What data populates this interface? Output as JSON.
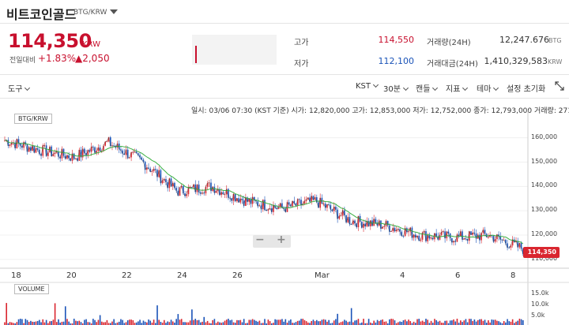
{
  "header": {
    "coin_name": "비트코인골드",
    "pair": "BTG/KRW"
  },
  "ticker": {
    "price": "114,350",
    "unit": "KRW",
    "change_label": "전일대비",
    "change_pct": "+1.83%",
    "change_abs": "▲2,050"
  },
  "stats": {
    "high_label": "고가",
    "high_value": "114,550",
    "low_label": "저가",
    "low_value": "112,100",
    "volume_label": "거래량(24H)",
    "volume_value": "12,247.676",
    "volume_unit": "BTG",
    "amount_label": "거래대금(24H)",
    "amount_value": "1,410,329,583",
    "amount_unit": "KRW"
  },
  "toolbar": {
    "tools": "도구",
    "timezone": "KST",
    "interval": "30분",
    "candle": "캔들",
    "indicator": "지표",
    "theme": "테마",
    "reset": "설정 초기화"
  },
  "info_line": {
    "datetime_label": "일시:",
    "datetime": "03/06 07:30 (KST 기준)",
    "open_label": "시가:",
    "open": "12,820,000",
    "high_label": "고가:",
    "high": "12,853,000",
    "low_label": "저가:",
    "low": "12,752,000",
    "close_label": "종가:",
    "close": "12,793,000",
    "volume_label": "거래량:",
    "volume": "271.452"
  },
  "chart": {
    "main_tag": "BTG/KRW",
    "volume_tag": "VOLUME",
    "current_price_tag": "114,350",
    "y_ticks": [
      "160,000",
      "150,000",
      "140,000",
      "130,000",
      "120,000",
      "110,000"
    ],
    "x_ticks": [
      "18",
      "20",
      "22",
      "24",
      "26",
      "Mar",
      "4",
      "6",
      "8"
    ],
    "vol_ticks": [
      "15.0k",
      "10.0k",
      "5.0k"
    ],
    "colors": {
      "up": "#d9262f",
      "down": "#1a53b8",
      "ma": "#3cb043"
    }
  },
  "chart_data": {
    "type": "line",
    "title": "BTG/KRW",
    "xlabel": "",
    "ylabel": "",
    "ylim": [
      108000,
      168000
    ],
    "x": [
      "18",
      "19",
      "20",
      "21",
      "22",
      "23",
      "24",
      "25",
      "26",
      "27",
      "Mar",
      "3",
      "4",
      "5",
      "6",
      "7"
    ],
    "series": [
      {
        "name": "BTG/KRW",
        "values": [
          159000,
          155000,
          152000,
          158000,
          150000,
          138000,
          140000,
          134000,
          131000,
          134000,
          126000,
          124000,
          120000,
          119000,
          120000,
          114350
        ]
      }
    ],
    "volume_ylim": [
      0,
      16000
    ],
    "grid": true
  }
}
